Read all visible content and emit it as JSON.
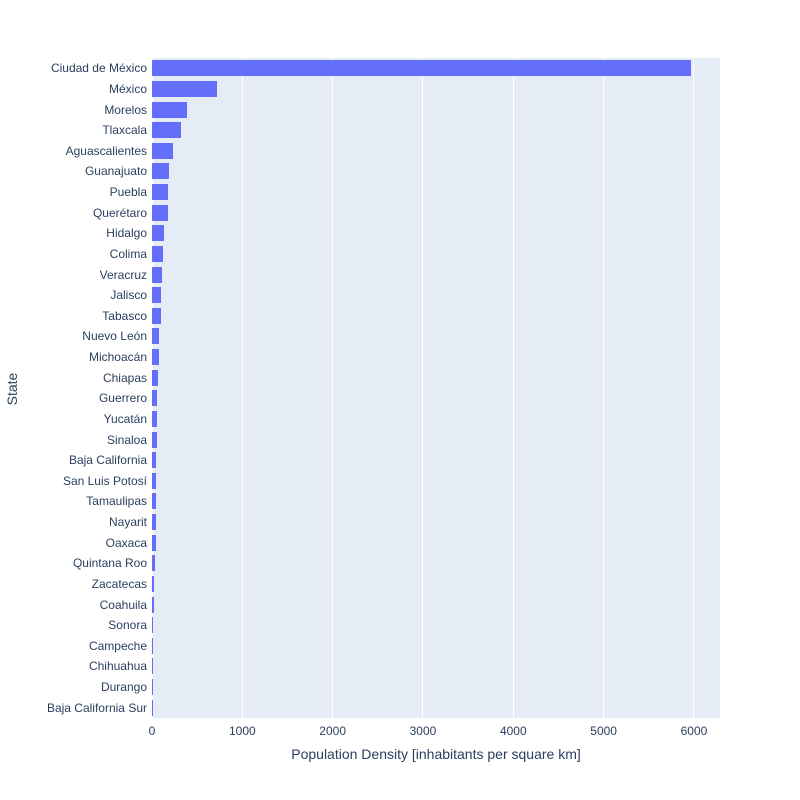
{
  "chart_data": {
    "type": "bar",
    "orientation": "horizontal",
    "title": "",
    "xlabel": "Population Density [inhabitants per square km]",
    "ylabel": "State",
    "xlim": [
      0,
      6288
    ],
    "xticks": [
      0,
      1000,
      2000,
      3000,
      4000,
      5000,
      6000
    ],
    "grid": true,
    "legend": "none",
    "categories": [
      "Ciudad de México",
      "México",
      "Morelos",
      "Tlaxcala",
      "Aguascalientes",
      "Guanajuato",
      "Puebla",
      "Querétaro",
      "Hidalgo",
      "Colima",
      "Veracruz",
      "Jalisco",
      "Tabasco",
      "Nuevo León",
      "Michoacán",
      "Chiapas",
      "Guerrero",
      "Yucatán",
      "Sinaloa",
      "Baja California",
      "San Luis Potosí",
      "Tamaulipas",
      "Nayarit",
      "Oaxaca",
      "Quintana Roo",
      "Zacatecas",
      "Coahuila",
      "Sonora",
      "Campeche",
      "Chihuahua",
      "Durango",
      "Baja California Sur"
    ],
    "values": [
      5967,
      724,
      390,
      319,
      234,
      191,
      180,
      175,
      137,
      126,
      113,
      100,
      97,
      80,
      78,
      71,
      56,
      53,
      52,
      46,
      45,
      43,
      42.5,
      42.3,
      34,
      21,
      19.5,
      16,
      15.6,
      14.4,
      14.2,
      9.6
    ]
  },
  "style": {
    "bar_color": "#636EFA",
    "plot_bg_color": "#E5ECF6",
    "grid_color": "#FFFFFF",
    "text_color": "#2A3F5F",
    "page_bg_color": "#FFFFFF"
  }
}
